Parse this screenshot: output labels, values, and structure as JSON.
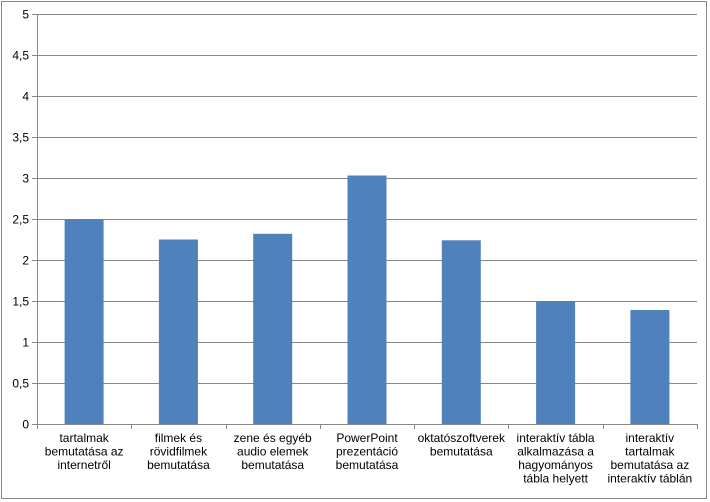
{
  "chart_data": {
    "type": "bar",
    "title": "",
    "xlabel": "",
    "ylabel": "",
    "ylim": [
      0,
      5
    ],
    "ytick_step": 0.5,
    "ytick_labels": [
      "0",
      "0,5",
      "1",
      "1,5",
      "2",
      "2,5",
      "3",
      "3,5",
      "4",
      "4,5",
      "5"
    ],
    "grid": true,
    "legend": "none",
    "bar_color": "#4F81BD",
    "categories": [
      [
        "tartalmak",
        "bemutatása az",
        "internetről"
      ],
      [
        "filmek és",
        "rövidfilmek",
        "bemutatása"
      ],
      [
        "zene és egyéb",
        "audio elemek",
        "bemutatása"
      ],
      [
        "PowerPoint",
        "prezentáció",
        "bemutatása"
      ],
      [
        "oktatószoftverek",
        "bemutatása"
      ],
      [
        "interaktív tábla",
        "alkalmazása a",
        "hagyományos",
        "tábla helyett"
      ],
      [
        "interaktív",
        "tartalmak",
        "bemutatása az",
        "interaktív táblán"
      ]
    ],
    "values": [
      2.5,
      2.25,
      2.32,
      3.03,
      2.24,
      1.5,
      1.39
    ]
  }
}
